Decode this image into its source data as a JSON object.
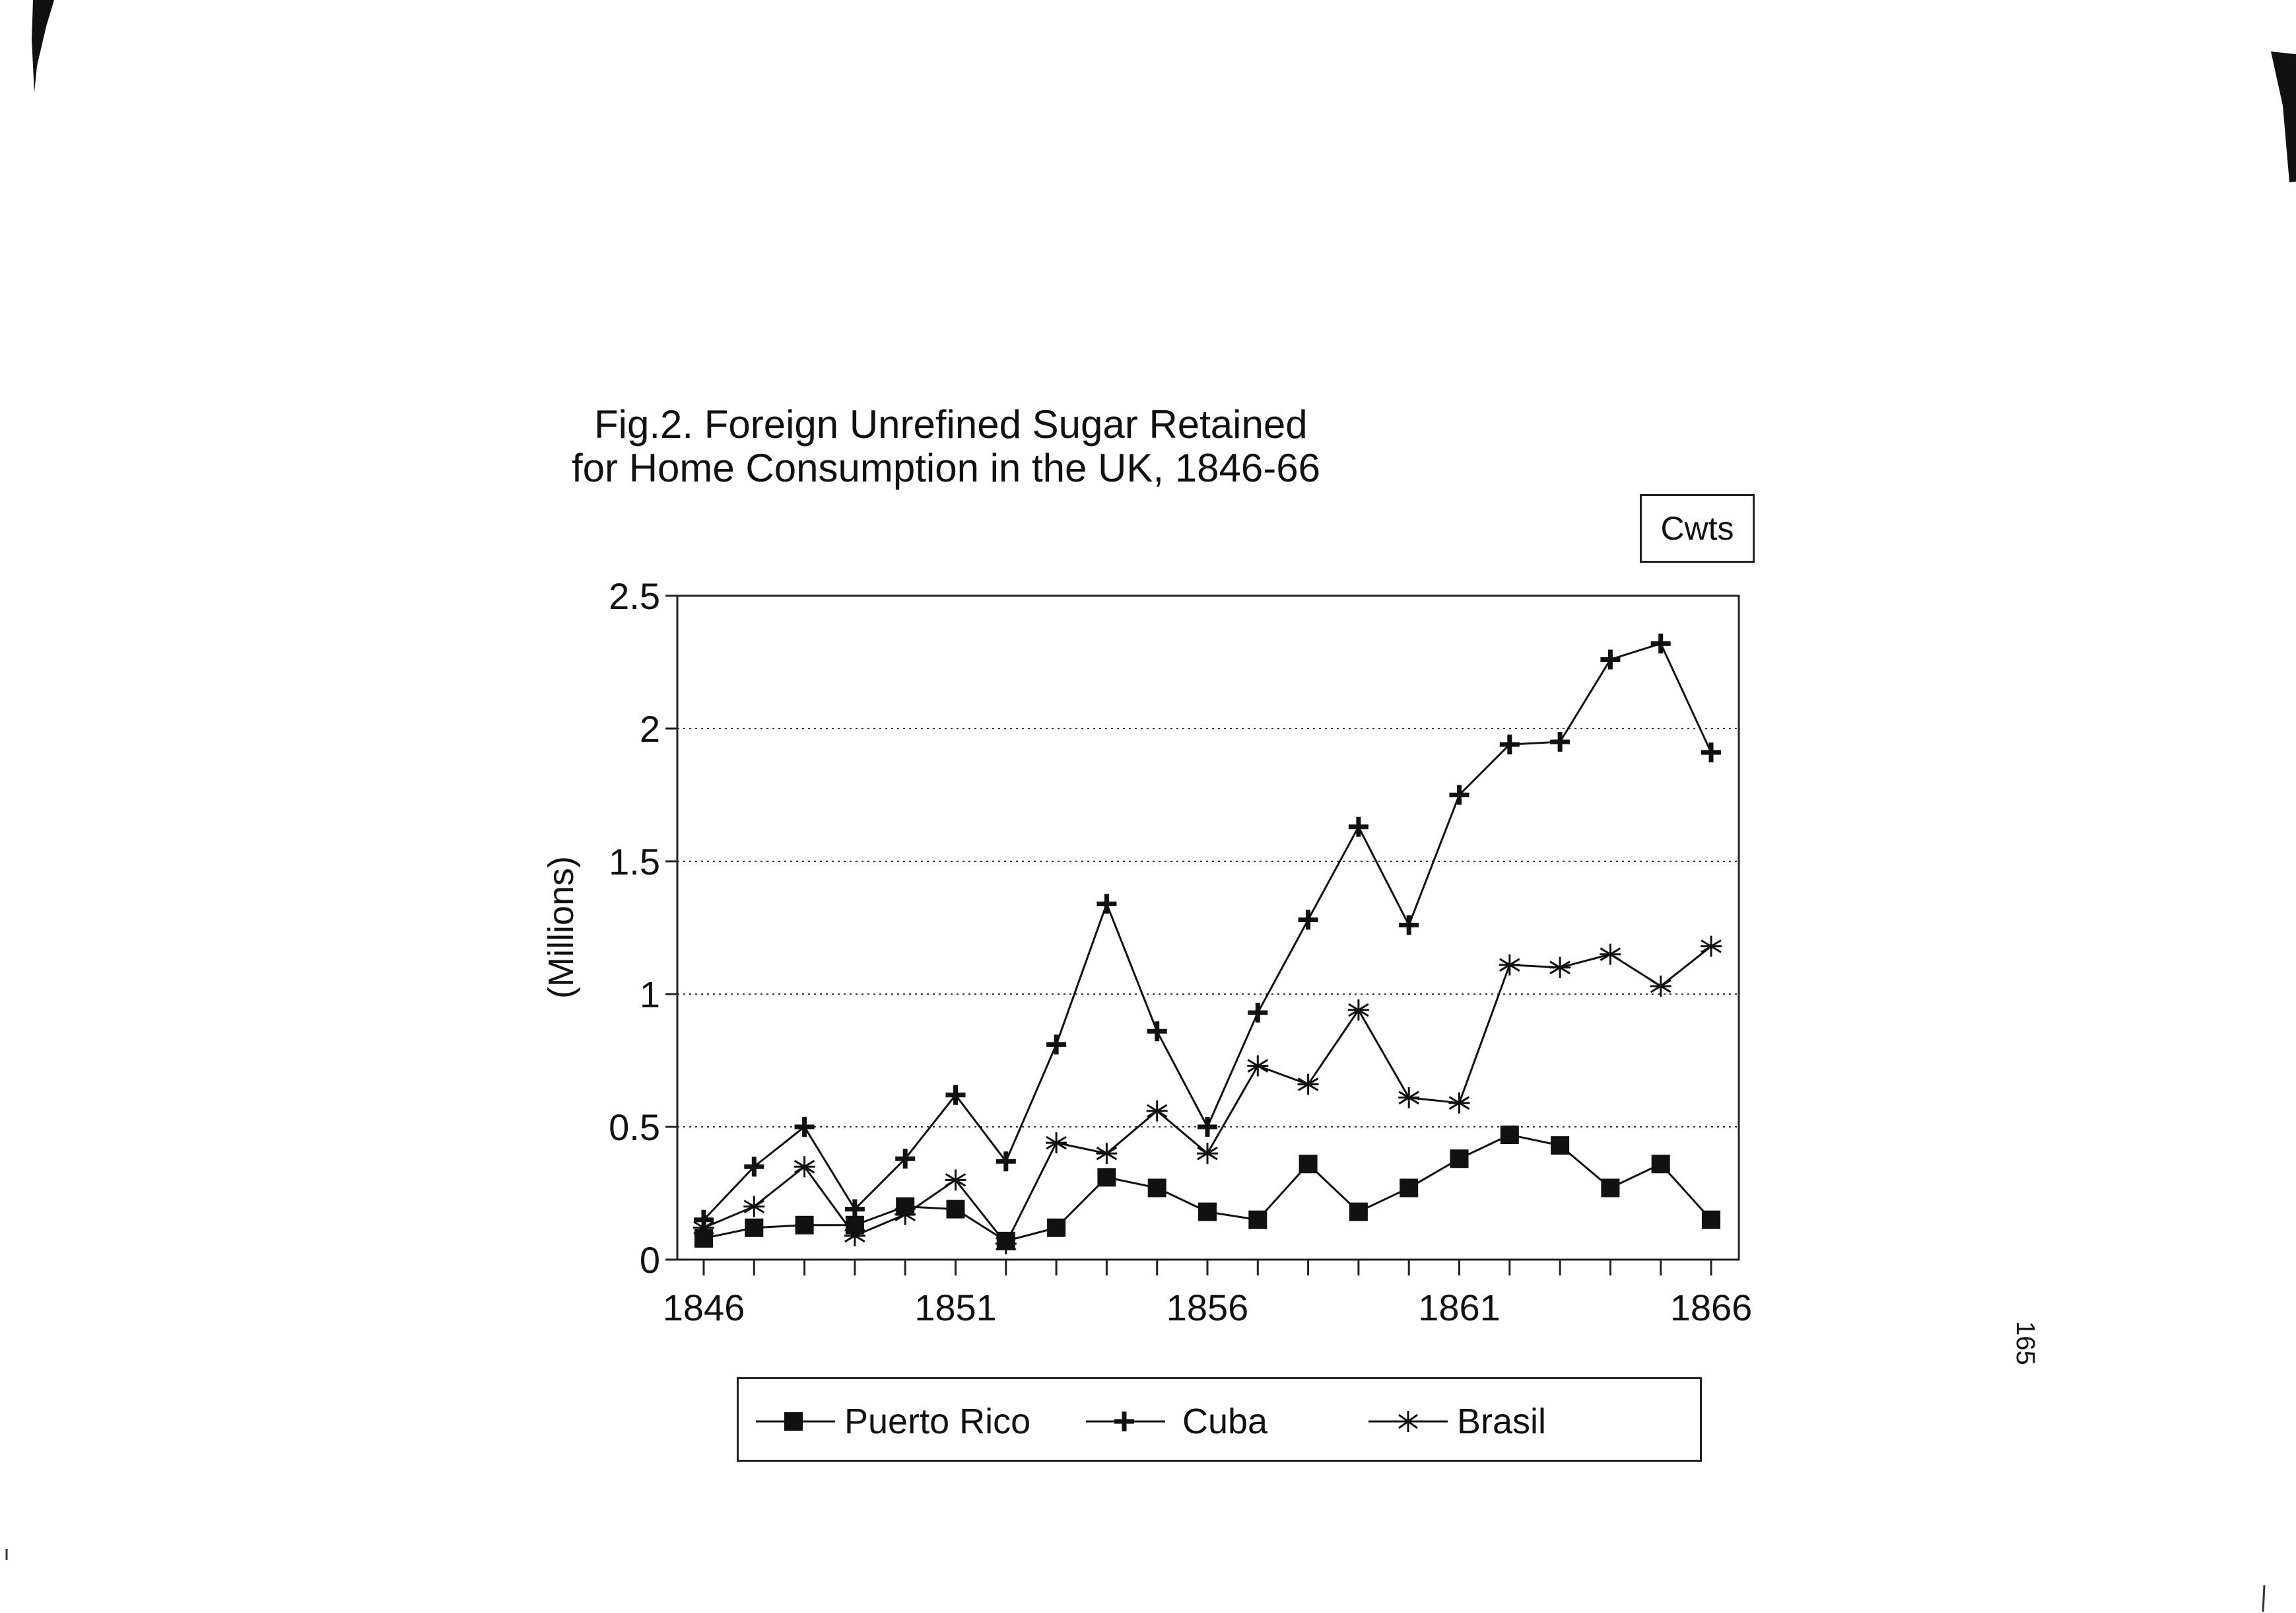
{
  "page_number": "165",
  "units_label": "Cwts",
  "chart_data": {
    "type": "line",
    "title_lines": [
      "Fig.2. Foreign Unrefined Sugar Retained",
      "for Home Consumption in the UK, 1846-66"
    ],
    "xlabel": "",
    "ylabel": "(Millions)",
    "x": [
      1846,
      1847,
      1848,
      1849,
      1850,
      1851,
      1852,
      1853,
      1854,
      1855,
      1856,
      1857,
      1858,
      1859,
      1860,
      1861,
      1862,
      1863,
      1864,
      1865,
      1866
    ],
    "x_tick_labels": [
      "1846",
      "1851",
      "1856",
      "1861",
      "1866"
    ],
    "y_tick_labels": [
      "0",
      "0.5",
      "1",
      "1.5",
      "2",
      "2.5"
    ],
    "ylim": [
      0,
      2.5
    ],
    "grid": "horizontal dotted",
    "legend_position": "bottom",
    "series": [
      {
        "name": "Puerto Rico",
        "marker": "square",
        "values": [
          0.08,
          0.12,
          0.13,
          0.13,
          0.2,
          0.19,
          0.07,
          0.12,
          0.31,
          0.27,
          0.18,
          0.15,
          0.36,
          0.18,
          0.27,
          0.38,
          0.47,
          0.43,
          0.27,
          0.36,
          0.15
        ]
      },
      {
        "name": "Cuba",
        "marker": "plus",
        "values": [
          0.15,
          0.35,
          0.5,
          0.19,
          0.38,
          0.62,
          0.37,
          0.81,
          1.34,
          0.86,
          0.5,
          0.93,
          1.28,
          1.63,
          1.26,
          1.75,
          1.94,
          1.95,
          2.26,
          2.32,
          1.91
        ]
      },
      {
        "name": "Brasil",
        "marker": "asterisk",
        "values": [
          0.12,
          0.2,
          0.35,
          0.09,
          0.17,
          0.3,
          0.06,
          0.44,
          0.4,
          0.56,
          0.4,
          0.73,
          0.66,
          0.94,
          0.61,
          0.59,
          1.11,
          1.1,
          1.15,
          1.03,
          1.18
        ]
      }
    ]
  }
}
